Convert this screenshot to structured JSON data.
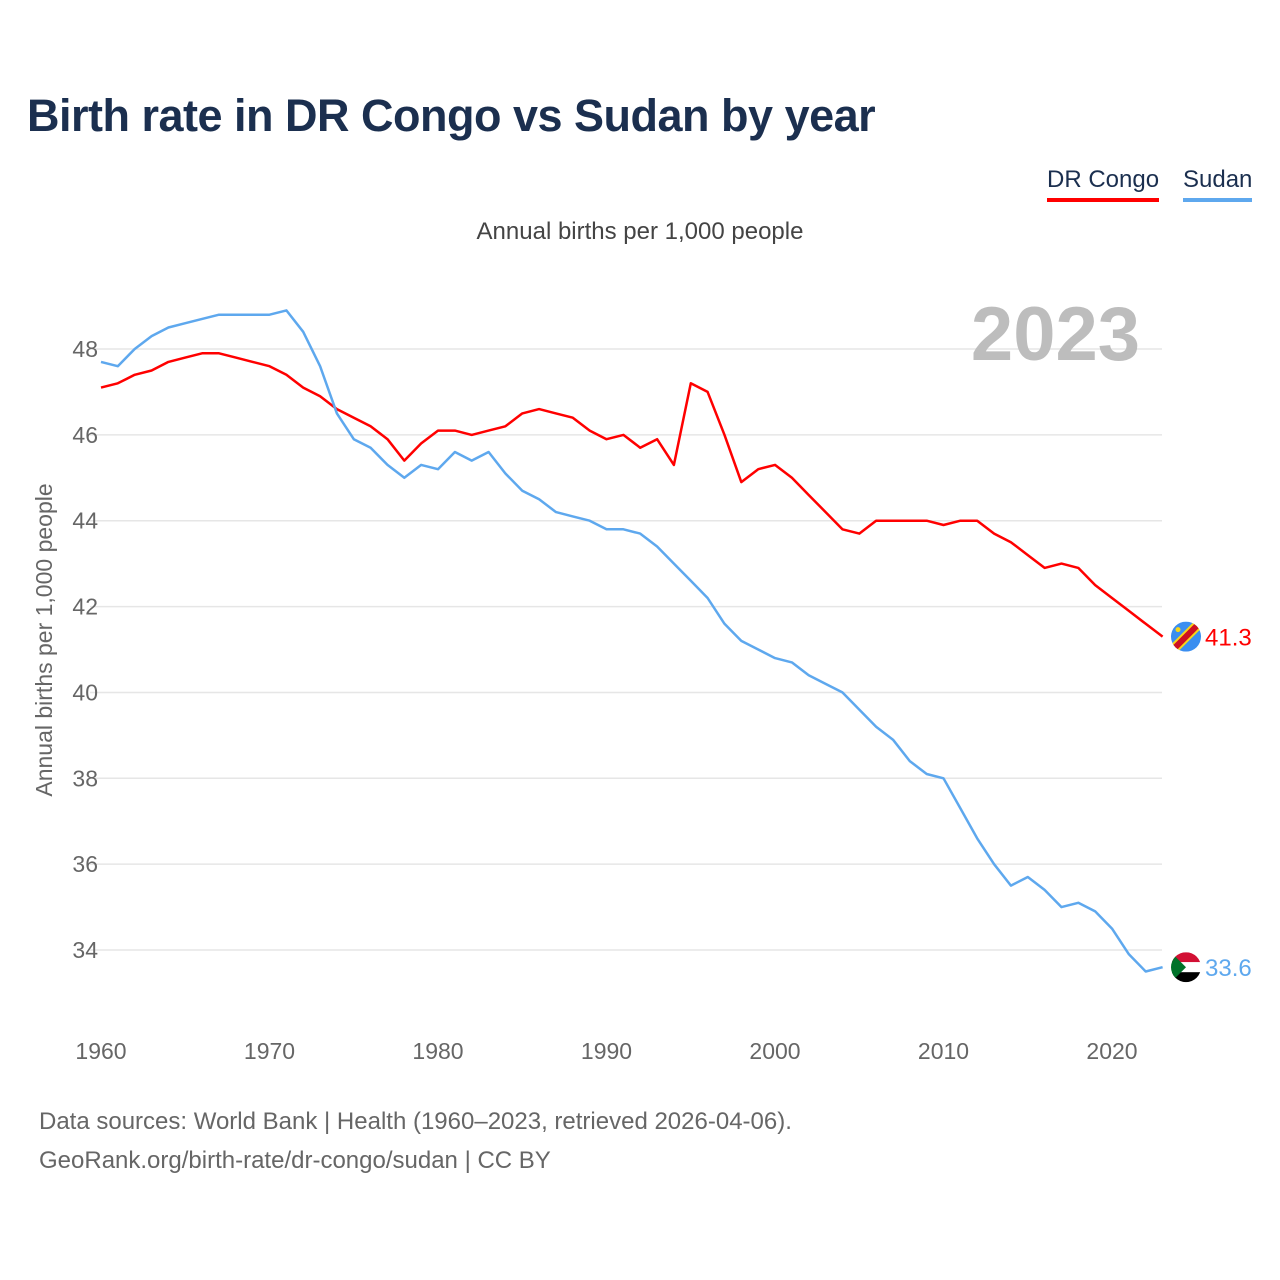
{
  "title": "Birth rate in DR Congo vs Sudan by year",
  "legend": {
    "drc": "DR Congo",
    "sudan": "Sudan"
  },
  "subtitle": "Annual births per 1,000 people",
  "footer": {
    "line1": "Data sources: World Bank | Health (1960–2023, retrieved 2026-04-06).",
    "line2": "GeoRank.org/birth-rate/dr-congo/sudan | CC BY"
  },
  "chart_data": {
    "type": "line",
    "title": "Birth rate in DR Congo vs Sudan by year",
    "ylabel": "Annual births per 1,000 people",
    "xlabel": "",
    "year_label": "2023",
    "xlim": [
      1960,
      2023
    ],
    "ylim": [
      33,
      49
    ],
    "xticks": [
      1960,
      1970,
      1980,
      1990,
      2000,
      2010,
      2020
    ],
    "yticks": [
      34,
      36,
      38,
      40,
      42,
      44,
      46,
      48
    ],
    "grid": true,
    "legend_position": "top-right",
    "x": [
      1960,
      1961,
      1962,
      1963,
      1964,
      1965,
      1966,
      1967,
      1968,
      1969,
      1970,
      1971,
      1972,
      1973,
      1974,
      1975,
      1976,
      1977,
      1978,
      1979,
      1980,
      1981,
      1982,
      1983,
      1984,
      1985,
      1986,
      1987,
      1988,
      1989,
      1990,
      1991,
      1992,
      1993,
      1994,
      1995,
      1996,
      1997,
      1998,
      1999,
      2000,
      2001,
      2002,
      2003,
      2004,
      2005,
      2006,
      2007,
      2008,
      2009,
      2010,
      2011,
      2012,
      2013,
      2014,
      2015,
      2016,
      2017,
      2018,
      2019,
      2020,
      2021,
      2022,
      2023
    ],
    "series": [
      {
        "name": "DR Congo",
        "color": "#ff0000",
        "end_label": "41.3",
        "values": [
          47.1,
          47.2,
          47.4,
          47.5,
          47.7,
          47.8,
          47.9,
          47.9,
          47.8,
          47.7,
          47.6,
          47.4,
          47.1,
          46.9,
          46.6,
          46.4,
          46.2,
          45.9,
          45.4,
          45.8,
          46.1,
          46.1,
          46.0,
          46.1,
          46.2,
          46.5,
          46.6,
          46.5,
          46.4,
          46.1,
          45.9,
          46.0,
          45.7,
          45.9,
          45.3,
          47.2,
          47.0,
          46.0,
          44.9,
          45.2,
          45.3,
          45.0,
          44.6,
          44.2,
          43.8,
          43.7,
          44.0,
          44.0,
          44.0,
          44.0,
          43.9,
          44.0,
          44.0,
          43.7,
          43.5,
          43.2,
          42.9,
          43.0,
          42.9,
          42.5,
          42.2,
          41.9,
          41.6,
          41.3
        ]
      },
      {
        "name": "Sudan",
        "color": "#5ea8ee",
        "end_label": "33.6",
        "values": [
          47.7,
          47.6,
          48.0,
          48.3,
          48.5,
          48.6,
          48.7,
          48.8,
          48.8,
          48.8,
          48.8,
          48.9,
          48.4,
          47.6,
          46.5,
          45.9,
          45.7,
          45.3,
          45.0,
          45.3,
          45.2,
          45.6,
          45.4,
          45.6,
          45.1,
          44.7,
          44.5,
          44.2,
          44.1,
          44.0,
          43.8,
          43.8,
          43.7,
          43.4,
          43.0,
          42.6,
          42.2,
          41.6,
          41.2,
          41.0,
          40.8,
          40.7,
          40.4,
          40.2,
          40.0,
          39.6,
          39.2,
          38.9,
          38.4,
          38.1,
          38.0,
          37.3,
          36.6,
          36.0,
          35.5,
          35.7,
          35.4,
          35.0,
          35.1,
          34.9,
          34.5,
          33.9,
          33.5,
          33.6
        ]
      }
    ]
  }
}
